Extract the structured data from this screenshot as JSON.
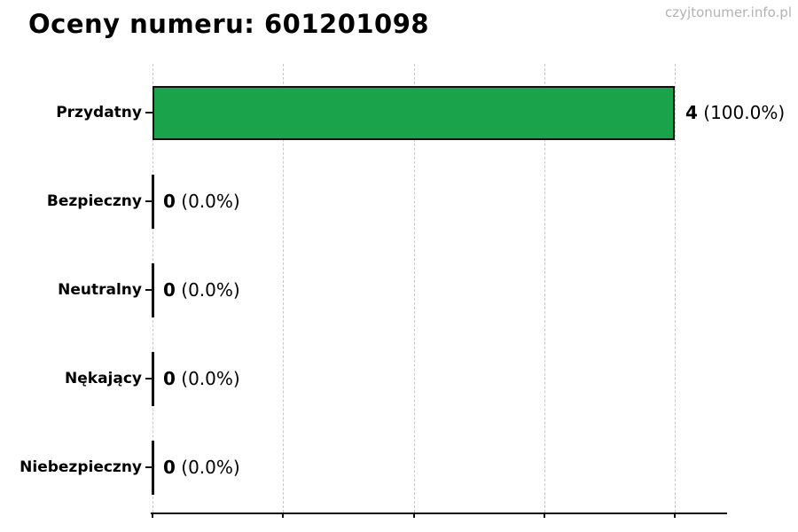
{
  "header": {
    "title": "Oceny numeru: 601201098",
    "watermark": "czyjtonumer.info.pl"
  },
  "chart_data": {
    "type": "bar",
    "orientation": "horizontal",
    "title": "Oceny numeru: 601201098",
    "categories": [
      "Przydatny",
      "Bezpieczny",
      "Neutralny",
      "Nękający",
      "Niebezpieczny"
    ],
    "values": [
      4,
      0,
      0,
      0,
      0
    ],
    "percents": [
      100.0,
      0.0,
      0.0,
      0.0,
      0.0
    ],
    "annotations": [
      {
        "count": "4",
        "percent": "(100.0%)"
      },
      {
        "count": "0",
        "percent": "(0.0%)"
      },
      {
        "count": "0",
        "percent": "(0.0%)"
      },
      {
        "count": "0",
        "percent": "(0.0%)"
      },
      {
        "count": "0",
        "percent": "(0.0%)"
      }
    ],
    "xlabel": "",
    "ylabel": "",
    "xlim": [
      0,
      4.4
    ],
    "xticks": [
      0,
      1,
      2,
      3,
      4
    ],
    "xtick_labels_visible": false,
    "grid": "vertical-dashed",
    "legend": "none",
    "bar_color": "#1aa34a",
    "bar_edge_color": "#111111",
    "gridline_color": "#c8c8c8",
    "watermark_color": "#b3b3b3"
  }
}
